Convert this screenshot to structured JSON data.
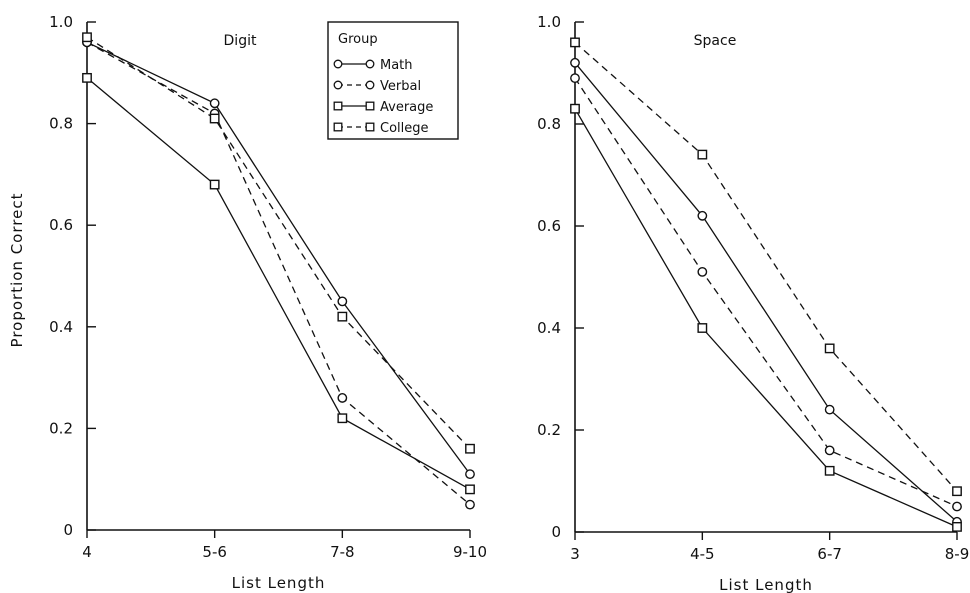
{
  "figure": {
    "ylabel": "Proportion Correct",
    "xlabel": "List Length"
  },
  "legend": {
    "title": "Group",
    "entries": [
      "Math",
      "Verbal",
      "Average",
      "College"
    ]
  },
  "chart_data": [
    {
      "type": "line",
      "title": "Digit",
      "xlabel": "List Length",
      "ylabel": "Proportion Correct",
      "categories": [
        "4",
        "5-6",
        "7-8",
        "9-10"
      ],
      "ylim": [
        0,
        1.0
      ],
      "yticks": [
        "0",
        "0.2",
        "0.4",
        "0.6",
        "0.8",
        "1.0"
      ],
      "legend_position": "top-right",
      "series": [
        {
          "name": "Math",
          "marker": "circle",
          "line": "solid",
          "values": [
            0.96,
            0.84,
            0.45,
            0.11
          ]
        },
        {
          "name": "Verbal",
          "marker": "circle",
          "line": "dashed",
          "values": [
            0.96,
            0.82,
            0.26,
            0.05
          ]
        },
        {
          "name": "Average",
          "marker": "square",
          "line": "solid",
          "values": [
            0.89,
            0.68,
            0.22,
            0.08
          ]
        },
        {
          "name": "College",
          "marker": "square",
          "line": "dashed",
          "values": [
            0.97,
            0.81,
            0.42,
            0.16
          ]
        }
      ]
    },
    {
      "type": "line",
      "title": "Space",
      "xlabel": "List Length",
      "ylabel": "",
      "categories": [
        "3",
        "4-5",
        "6-7",
        "8-9"
      ],
      "ylim": [
        0,
        1.0
      ],
      "yticks": [
        "0",
        "0.2",
        "0.4",
        "0.6",
        "0.8",
        "1.0"
      ],
      "series": [
        {
          "name": "Math",
          "marker": "circle",
          "line": "solid",
          "values": [
            0.92,
            0.62,
            0.24,
            0.02
          ]
        },
        {
          "name": "Verbal",
          "marker": "circle",
          "line": "dashed",
          "values": [
            0.89,
            0.51,
            0.16,
            0.05
          ]
        },
        {
          "name": "Average",
          "marker": "square",
          "line": "solid",
          "values": [
            0.83,
            0.4,
            0.12,
            0.01
          ]
        },
        {
          "name": "College",
          "marker": "square",
          "line": "dashed",
          "values": [
            0.96,
            0.74,
            0.36,
            0.08
          ]
        }
      ]
    }
  ]
}
